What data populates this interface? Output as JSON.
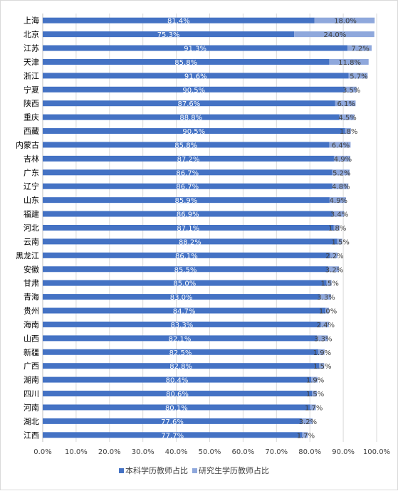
{
  "chart_data": {
    "type": "bar",
    "orientation": "horizontal",
    "stacked": true,
    "categories": [
      "上海",
      "北京",
      "江苏",
      "天津",
      "浙江",
      "宁夏",
      "陕西",
      "重庆",
      "西藏",
      "内蒙古",
      "吉林",
      "广东",
      "辽宁",
      "山东",
      "福建",
      "河北",
      "云南",
      "黑龙江",
      "安徽",
      "甘肃",
      "青海",
      "贵州",
      "海南",
      "山西",
      "新疆",
      "广西",
      "湖南",
      "四川",
      "河南",
      "湖北",
      "江西"
    ],
    "series": [
      {
        "name": "本科学历教师占比",
        "color": "#4472c4",
        "values": [
          81.4,
          75.3,
          91.3,
          85.8,
          91.6,
          90.5,
          87.6,
          88.8,
          90.5,
          85.8,
          87.2,
          86.7,
          86.7,
          85.9,
          86.9,
          87.1,
          88.2,
          86.1,
          85.5,
          85.0,
          83.0,
          84.7,
          83.3,
          82.1,
          82.5,
          82.8,
          80.4,
          80.6,
          80.1,
          77.6,
          77.7
        ],
        "labels": [
          "81.4%",
          "75.3%",
          "91.3%",
          "85.8%",
          "91.6%",
          "90.5%",
          "87.6%",
          "88.8%",
          "90.5%",
          "85.8%",
          "87.2%",
          "86.7%",
          "86.7%",
          "85.9%",
          "86.9%",
          "87.1%",
          "88.2%",
          "86.1%",
          "85.5%",
          "85.0%",
          "83.0%",
          "84.7%",
          "83.3%",
          "82.1%",
          "82.5%",
          "82.8%",
          "80.4%",
          "80.6%",
          "80.1%",
          "77.6%",
          "77.7%"
        ]
      },
      {
        "name": "研究生学历教师占比",
        "color": "#8fa8dc",
        "values": [
          18.0,
          24.0,
          7.2,
          11.8,
          5.7,
          3.5,
          6.1,
          4.5,
          1.8,
          6.4,
          4.9,
          5.2,
          4.8,
          4.9,
          3.4,
          1.8,
          1.5,
          2.2,
          3.2,
          1.5,
          3.3,
          1.0,
          2.4,
          3.3,
          1.9,
          1.5,
          1.9,
          1.5,
          1.7,
          3.2,
          1.7
        ],
        "labels": [
          "18.0%",
          "24.0%",
          "7.2%",
          "11.8%",
          "5.7%",
          "3.5%",
          "6.1%",
          "4.5%",
          "1.8%",
          "6.4%",
          "4.9%",
          "5.2%",
          "4.8%",
          "4.9%",
          "3.4%",
          "1.8%",
          "1.5%",
          "2.2%",
          "3.2%",
          "1.5%",
          "3.3%",
          "1.0%",
          "2.4%",
          "3.3%",
          "1.9%",
          "1.5%",
          "1.9%",
          "1.5%",
          "1.7%",
          "3.2%",
          "1.7%"
        ]
      }
    ],
    "xlim": [
      0,
      100
    ],
    "xticks": [
      "0.0%",
      "10.0%",
      "20.0%",
      "30.0%",
      "40.0%",
      "50.0%",
      "60.0%",
      "70.0%",
      "80.0%",
      "90.0%",
      "100.0%"
    ],
    "grid": true,
    "legend_position": "bottom"
  }
}
